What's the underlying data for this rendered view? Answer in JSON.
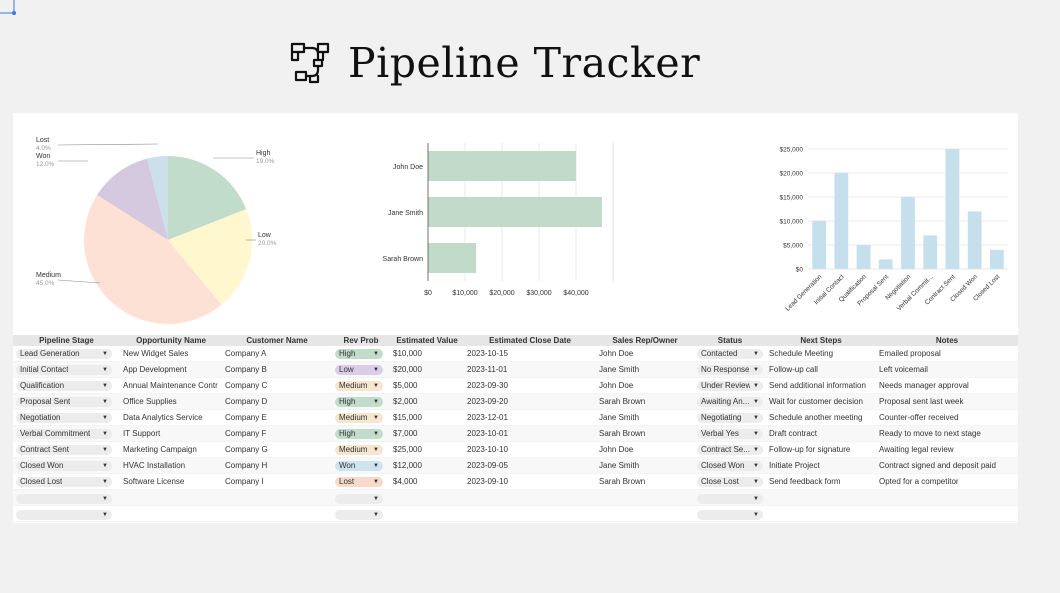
{
  "title": "Pipeline Tracker",
  "icon": "pipe-fittings-icon",
  "colors": {
    "high": "#c2dccc",
    "low": "#fff8cf",
    "medium": "#fde1d5",
    "won": "#cfe3ef",
    "lost": "#f7dacb",
    "wonPie": "#d5c9e0",
    "lostPie": "#cbe0ea",
    "bar": "#c1dac9",
    "col": "#c5e0ec",
    "lowChip": "#dbcce8"
  },
  "pie": {
    "slices": [
      {
        "label": "High",
        "pct": "19.0%",
        "value": 19.0
      },
      {
        "label": "Low",
        "pct": "20.0%",
        "value": 20.0
      },
      {
        "label": "Medium",
        "pct": "45.0%",
        "value": 45.0
      },
      {
        "label": "Won",
        "pct": "12.0%",
        "value": 12.0
      },
      {
        "label": "Lost",
        "pct": "4.0%",
        "value": 4.0
      }
    ]
  },
  "chart_data": [
    {
      "type": "pie",
      "title": "",
      "categories": [
        "High",
        "Low",
        "Medium",
        "Won",
        "Lost"
      ],
      "values": [
        19.0,
        20.0,
        45.0,
        12.0,
        4.0
      ],
      "legend": "none"
    },
    {
      "type": "bar",
      "orientation": "horizontal",
      "title": "",
      "categories": [
        "John Doe",
        "Jane Smith",
        "Sarah Brown"
      ],
      "values": [
        40000,
        47000,
        13000
      ],
      "xlim": [
        0,
        50000
      ],
      "xticks": [
        "$0",
        "$10,000",
        "$20,000",
        "$30,000",
        "$40,000"
      ],
      "grid": true
    },
    {
      "type": "bar",
      "title": "",
      "categories": [
        "Lead Generation",
        "Initial Contact",
        "Qualification",
        "Proposal Sent",
        "Negotiation",
        "Verbal Commit...",
        "Contract Sent",
        "Closed Won",
        "Closed Lost"
      ],
      "values": [
        10000,
        20000,
        5000,
        2000,
        15000,
        7000,
        25000,
        12000,
        4000
      ],
      "ylim": [
        0,
        25000
      ],
      "yticks": [
        "$0",
        "$5,000",
        "$10,000",
        "$15,000",
        "$20,000",
        "$25,000"
      ],
      "grid": true
    }
  ],
  "table": {
    "headers": [
      "Pipeline Stage",
      "Opportunity Name",
      "Customer Name",
      "Rev Prob",
      "Estimated Value",
      "Estimated Close Date",
      "Sales Rep/Owner",
      "Status",
      "Next Steps",
      "Notes"
    ],
    "rows": [
      {
        "stage": "Lead Generation",
        "opp": "New Widget Sales",
        "cust": "Company A",
        "prob": "High",
        "probColor": "#c2dccc",
        "value": "$10,000",
        "date": "2023-10-15",
        "rep": "John Doe",
        "status": "Contacted",
        "next": "Schedule Meeting",
        "notes": "Emailed proposal"
      },
      {
        "stage": "Initial Contact",
        "opp": "App Development",
        "cust": "Company B",
        "prob": "Low",
        "probColor": "#dbcce8",
        "value": "$20,000",
        "date": "2023-11-01",
        "rep": "Jane Smith",
        "status": "No Response",
        "next": "Follow-up call",
        "notes": "Left voicemail"
      },
      {
        "stage": "Qualification",
        "opp": "Annual Maintenance Contr",
        "cust": "Company C",
        "prob": "Medium",
        "probColor": "#f5e6cf",
        "value": "$5,000",
        "date": "2023-09-30",
        "rep": "John Doe",
        "status": "Under Review",
        "next": "Send additional information",
        "notes": "Needs manager approval"
      },
      {
        "stage": "Proposal Sent",
        "opp": "Office Supplies",
        "cust": "Company D",
        "prob": "High",
        "probColor": "#c2dccc",
        "value": "$2,000",
        "date": "2023-09-20",
        "rep": "Sarah Brown",
        "status": "Awaiting An...",
        "next": "Wait for customer decision",
        "notes": "Proposal sent last week"
      },
      {
        "stage": "Negotiation",
        "opp": "Data Analytics Service",
        "cust": "Company E",
        "prob": "Medium",
        "probColor": "#f5e6cf",
        "value": "$15,000",
        "date": "2023-12-01",
        "rep": "Jane Smith",
        "status": "Negotiating",
        "next": "Schedule another meeting",
        "notes": "Counter-offer received"
      },
      {
        "stage": "Verbal Commitment",
        "opp": "IT Support",
        "cust": "Company F",
        "prob": "High",
        "probColor": "#c2dccc",
        "value": "$7,000",
        "date": "2023-10-01",
        "rep": "Sarah Brown",
        "status": "Verbal Yes",
        "next": "Draft contract",
        "notes": "Ready to move to next stage"
      },
      {
        "stage": "Contract Sent",
        "opp": "Marketing Campaign",
        "cust": "Company G",
        "prob": "Medium",
        "probColor": "#f5e6cf",
        "value": "$25,000",
        "date": "2023-10-10",
        "rep": "John Doe",
        "status": "Contract Se...",
        "next": "Follow-up for signature",
        "notes": "Awaiting legal review"
      },
      {
        "stage": "Closed Won",
        "opp": "HVAC Installation",
        "cust": "Company H",
        "prob": "Won",
        "probColor": "#cfe3ef",
        "value": "$12,000",
        "date": "2023-09-05",
        "rep": "Jane Smith",
        "status": "Closed Won",
        "next": "Initiate Project",
        "notes": "Contract signed and deposit paid"
      },
      {
        "stage": "Closed Lost",
        "opp": "Software License",
        "cust": "Company I",
        "prob": "Lost",
        "probColor": "#f7dacb",
        "value": "$4,000",
        "date": "2023-09-10",
        "rep": "Sarah Brown",
        "status": "Close Lost",
        "next": "Send feedback form",
        "notes": "Opted for a competitor"
      },
      {
        "stage": "",
        "opp": "",
        "cust": "",
        "prob": "",
        "probColor": "#ececec",
        "value": "",
        "date": "",
        "rep": "",
        "status": "",
        "next": "",
        "notes": ""
      },
      {
        "stage": "",
        "opp": "",
        "cust": "",
        "prob": "",
        "probColor": "#ececec",
        "value": "",
        "date": "",
        "rep": "",
        "status": "",
        "next": "",
        "notes": ""
      }
    ]
  }
}
